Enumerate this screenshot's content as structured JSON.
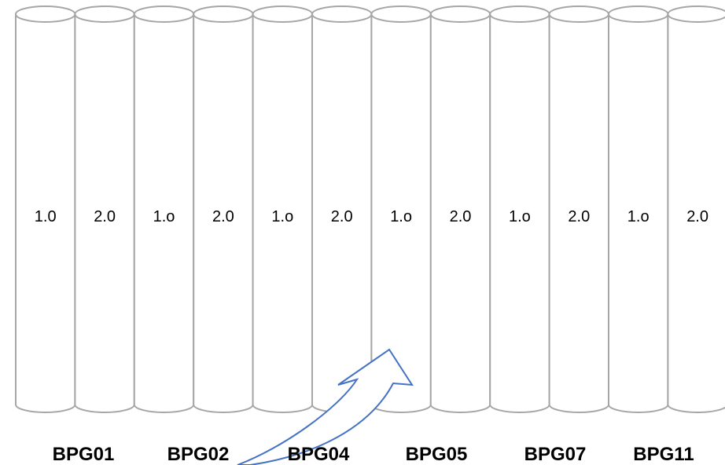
{
  "cylinders": [
    {
      "label": "1.0"
    },
    {
      "label": "2.0"
    },
    {
      "label": "1.o"
    },
    {
      "label": "2.0"
    },
    {
      "label": "1.o"
    },
    {
      "label": "2.0"
    },
    {
      "label": "1.o"
    },
    {
      "label": "2.0"
    },
    {
      "label": "1.o"
    },
    {
      "label": "2.0"
    },
    {
      "label": "1.o"
    },
    {
      "label": "2.0"
    }
  ],
  "groups": [
    "BPG01",
    "BPG02",
    "BPG04",
    "BPG05",
    "BPG07",
    "BPG11"
  ],
  "colors": {
    "cylinder_stroke": "#a6a6a6",
    "arrow_stroke": "#4472c4"
  }
}
